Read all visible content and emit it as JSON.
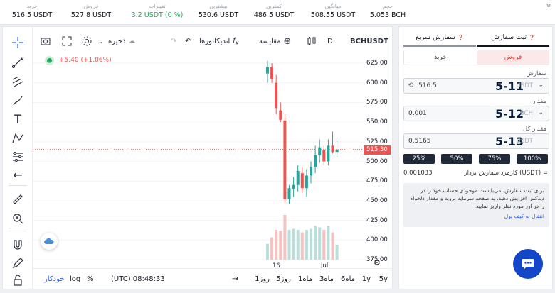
{
  "top_stats": [
    {
      "label": "حجم",
      "value": "5.053 BCH"
    },
    {
      "label": "میانگین",
      "value": "508.55 USDT"
    },
    {
      "label": "کمترین",
      "value": "486.5 USDT"
    },
    {
      "label": "بیشترین",
      "value": "530.6 USDT"
    },
    {
      "label": "تغییرات",
      "value": "3.2 USDT (0 %)"
    },
    {
      "label": "فروش",
      "value": "527.8 USDT"
    },
    {
      "label": "خرید",
      "value": "516.5 USDT"
    }
  ],
  "toolbar": {
    "symbol": "BCHUSDT",
    "interval": "D",
    "compare_label": "مقایسه",
    "indicators_label": "اندیکاتورها",
    "save_label": "ذخیره"
  },
  "chart_header": {
    "change": "+5,40 (+1,06%)"
  },
  "price_axis": [
    "625,00",
    "600,00",
    "575,00",
    "550,00",
    "525,00",
    "500,00",
    "475,00",
    "450,00",
    "425,00",
    "400,00",
    "375,00"
  ],
  "current_price_tag": "515,30",
  "time_axis": [
    "16",
    "Jul"
  ],
  "bottom_bar": {
    "ranges": [
      "5y",
      "1y",
      "6ماه",
      "3ماه",
      "1ماه",
      "5روز",
      "1روز"
    ],
    "time": "(UTC) 08:48:33",
    "percent": "%",
    "log": "log",
    "auto": "خودکار"
  },
  "order": {
    "tab_active": "ثبت سفارش",
    "tab_other": "سفارش سریع",
    "sell_label": "فروش",
    "buy_label": "خرید",
    "price_label": "سفارش",
    "price_value": "516.5",
    "price_currency": "USDT",
    "price_annotation": "5-11",
    "amount_label": "مقدار",
    "amount_value": "0.001",
    "amount_currency": "BCH",
    "amount_annotation": "5-12",
    "total_label": "مقدار کل",
    "total_value": "0.5165",
    "total_currency": "USDT",
    "total_annotation": "5-13",
    "percent_buttons": [
      "25%",
      "50%",
      "75%",
      "100%"
    ],
    "fee_label": "کارمزد سفارش بردار (USDT) =",
    "fee_value": "0.001033",
    "notice_text": "برای ثبت سفارش، می‌بایست موجودی حساب خود را در دیدکس افزایش دهید. به صفحه سرمایه بروید و مقدار دلخواه را در ارز مورد نظر واریز نمایید.",
    "notice_link": "انتقال به کیف پول"
  },
  "chart_data": {
    "type": "candlestick",
    "ylim": [
      375,
      635
    ],
    "candles": [
      {
        "o": 612,
        "h": 628,
        "l": 600,
        "c": 620
      },
      {
        "o": 620,
        "h": 625,
        "l": 600,
        "c": 605
      },
      {
        "o": 600,
        "h": 610,
        "l": 560,
        "c": 568
      },
      {
        "o": 565,
        "h": 575,
        "l": 550,
        "c": 553
      },
      {
        "o": 552,
        "h": 560,
        "l": 447,
        "c": 452
      },
      {
        "o": 452,
        "h": 470,
        "l": 446,
        "c": 466
      },
      {
        "o": 465,
        "h": 480,
        "l": 455,
        "c": 470
      },
      {
        "o": 470,
        "h": 495,
        "l": 462,
        "c": 488
      },
      {
        "o": 485,
        "h": 492,
        "l": 460,
        "c": 466
      },
      {
        "o": 466,
        "h": 490,
        "l": 455,
        "c": 482
      },
      {
        "o": 482,
        "h": 500,
        "l": 472,
        "c": 493
      },
      {
        "o": 493,
        "h": 520,
        "l": 485,
        "c": 508
      },
      {
        "o": 508,
        "h": 528,
        "l": 498,
        "c": 518
      },
      {
        "o": 514,
        "h": 520,
        "l": 495,
        "c": 500
      },
      {
        "o": 500,
        "h": 528,
        "l": 495,
        "c": 520
      },
      {
        "o": 520,
        "h": 538,
        "l": 510,
        "c": 512
      },
      {
        "o": 512,
        "h": 526,
        "l": 505,
        "c": 515
      }
    ],
    "volumes": [
      0.32,
      0.45,
      0.6,
      0.58,
      0.9,
      0.6,
      0.62,
      0.6,
      0.55,
      0.6,
      0.62,
      0.68,
      0.65,
      0.6,
      0.68,
      0.55,
      0.3
    ],
    "current_price": 515.3
  },
  "colors": {
    "up": "#26a69a",
    "down": "#ef5350",
    "vol_up": "#b9dfdb",
    "vol_down": "#f5c2c0",
    "accent": "#2962ff"
  }
}
